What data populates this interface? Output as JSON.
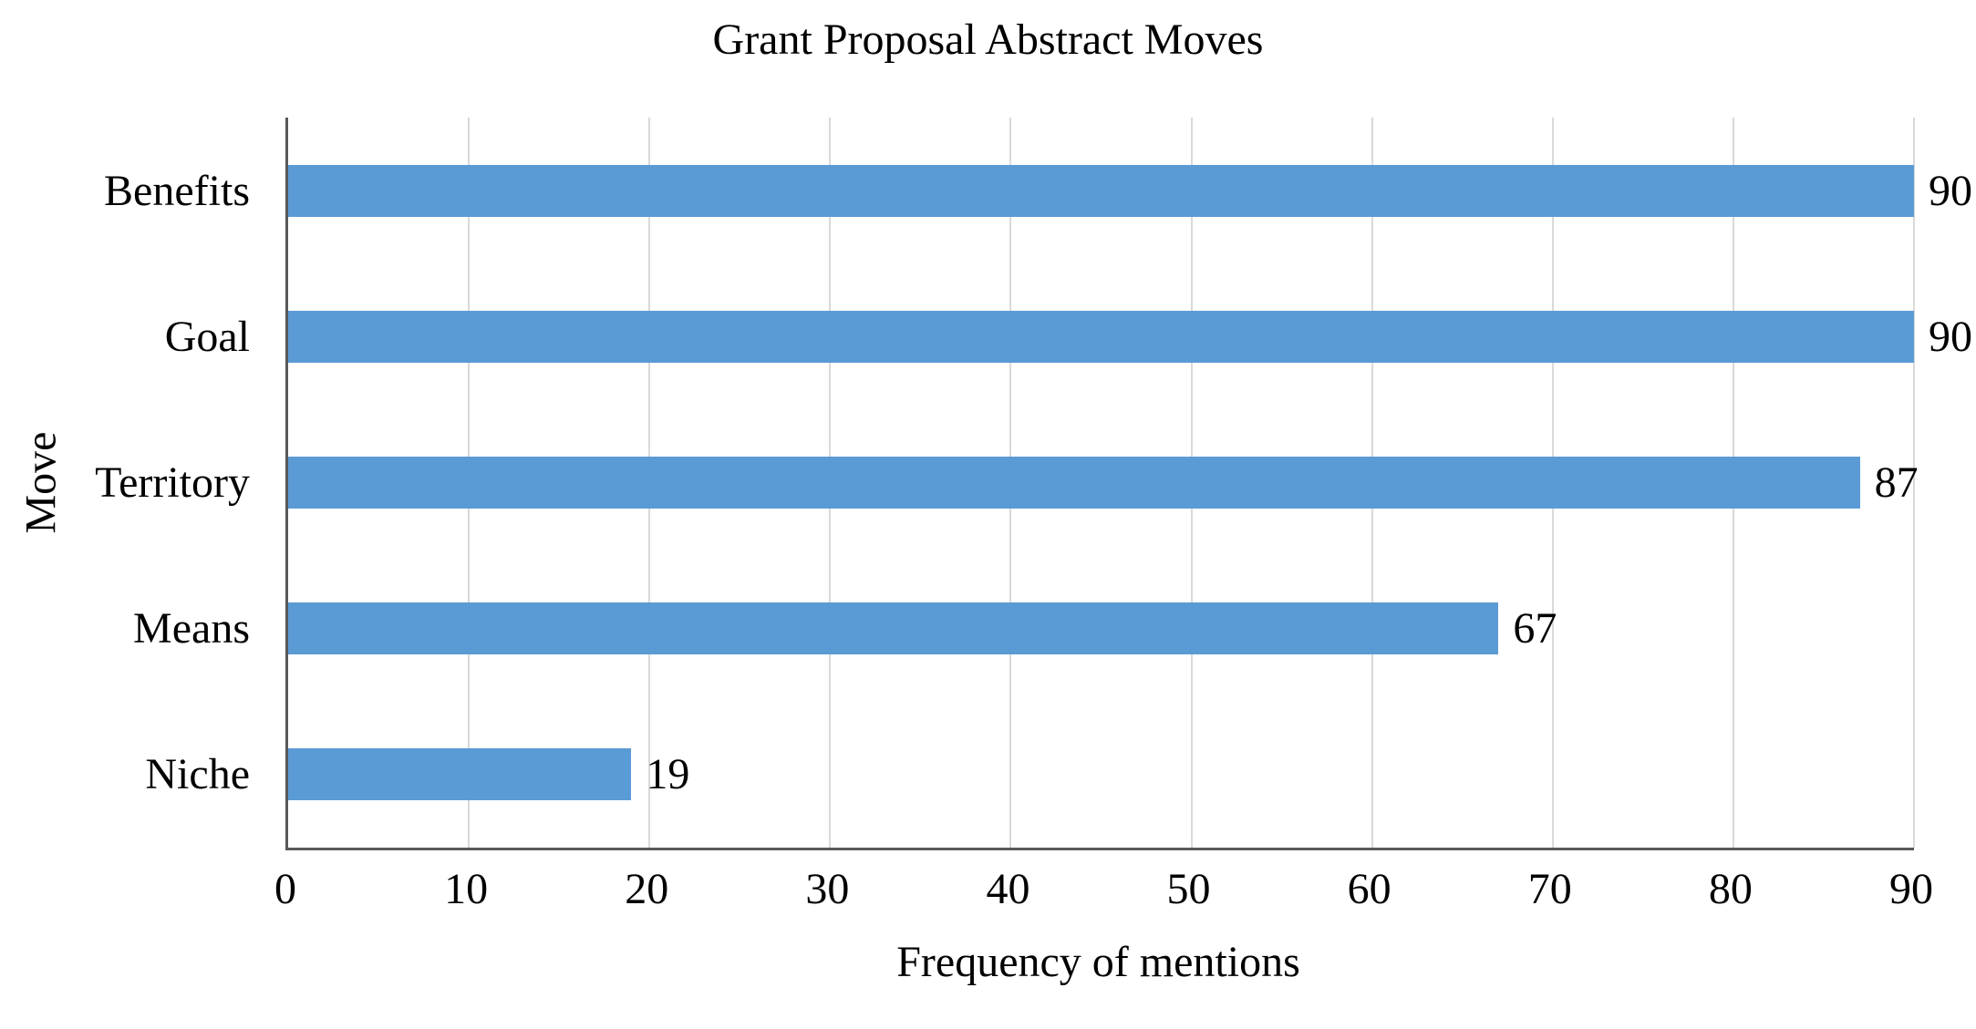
{
  "chart_data": {
    "type": "bar",
    "orientation": "horizontal",
    "title": "Grant Proposal Abstract Moves",
    "xlabel": "Frequency of mentions",
    "ylabel": "Move",
    "categories": [
      "Benefits",
      "Goal",
      "Territory",
      "Means",
      "Niche"
    ],
    "values": [
      90,
      90,
      87,
      67,
      19
    ],
    "data_labels": [
      90,
      90,
      87,
      67,
      19
    ],
    "xlim": [
      0,
      90
    ],
    "xticks": [
      0,
      10,
      20,
      30,
      40,
      50,
      60,
      70,
      80,
      90
    ],
    "grid": "vertical-only",
    "legend": false,
    "colors": {
      "bar": "#5B9BD5",
      "gridline": "#D9D9D9",
      "axis_line": "#595959",
      "text": "#000000",
      "background": "#FFFFFF"
    }
  }
}
